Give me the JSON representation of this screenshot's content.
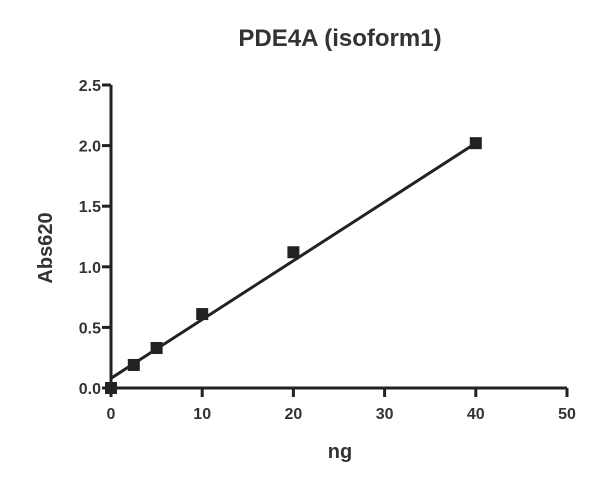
{
  "chart_data": {
    "type": "scatter",
    "title": "PDE4A (isoform1)",
    "xlabel": "ng",
    "ylabel": "Abs620",
    "xlim": [
      0,
      50
    ],
    "ylim": [
      0,
      2.5
    ],
    "xticks": [
      0,
      10,
      20,
      30,
      40,
      50
    ],
    "yticks": [
      0.0,
      0.5,
      1.0,
      1.5,
      2.0,
      2.5
    ],
    "xtick_labels": [
      "0",
      "10",
      "20",
      "30",
      "40",
      "50"
    ],
    "ytick_labels": [
      "0.0",
      "0.5",
      "1.0",
      "1.5",
      "2.0",
      "2.5"
    ],
    "grid": false,
    "series": [
      {
        "x": [
          0,
          2.5,
          5,
          10,
          20,
          40
        ],
        "y": [
          0.0,
          0.19,
          0.33,
          0.61,
          1.12,
          2.02
        ],
        "marker": "square",
        "color": "#222222"
      }
    ],
    "fit_line": {
      "x": [
        0,
        40
      ],
      "y": [
        0.08,
        2.02
      ],
      "color": "#222222"
    }
  }
}
